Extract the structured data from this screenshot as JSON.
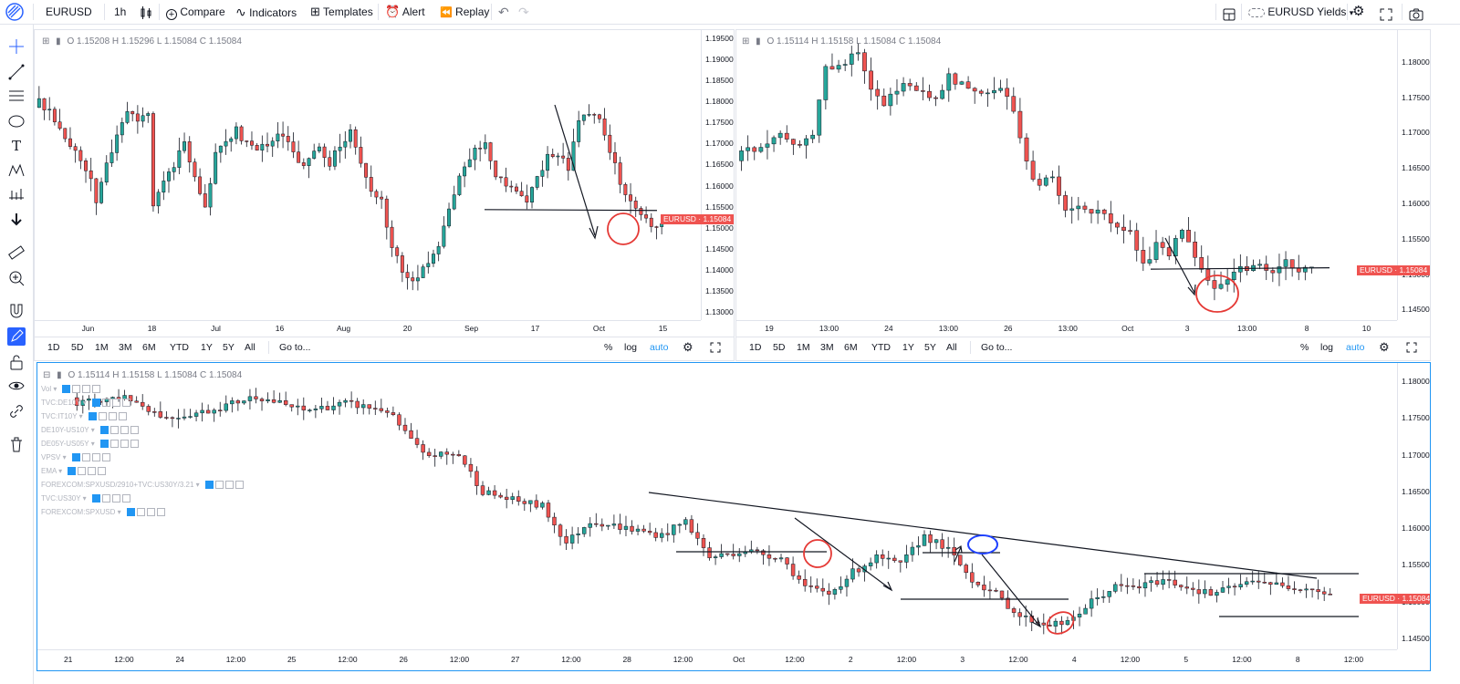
{
  "topbar": {
    "symbol": "EURUSD",
    "interval": "1h",
    "compare": "Compare",
    "indicators": "Indicators",
    "templates": "Templates",
    "alert": "Alert",
    "replay": "Replay",
    "layout_name": "EURUSD Yields"
  },
  "colors": {
    "up": "#26a69a",
    "down": "#ef5350",
    "accent": "#2196f3",
    "pricetag": "#ef5350",
    "annotation_red": "#e53935",
    "annotation_blue": "#1e40ff"
  },
  "leftbar_icons": [
    "crosshair-icon",
    "trendline-icon",
    "fib-icon",
    "shape-icon",
    "text-icon",
    "pattern-icon",
    "prediction-icon",
    "arrow-down-icon",
    "ruler-icon",
    "zoom-icon",
    "magnet-icon",
    "draw-mode-icon",
    "lock-icon",
    "eye-icon",
    "link-icon",
    "trash-icon"
  ],
  "range_buttons": [
    "1D",
    "5D",
    "1M",
    "3M",
    "6M",
    "YTD",
    "1Y",
    "5Y",
    "All"
  ],
  "goto": "Go to...",
  "scale_opts": {
    "percent": "%",
    "log": "log",
    "auto": "auto"
  },
  "pane1": {
    "ohlc": "O 1.15208   H 1.15296   L 1.15084   C 1.15084",
    "yticks": [
      "1.19500",
      "1.19000",
      "1.18500",
      "1.18000",
      "1.17500",
      "1.17000",
      "1.16500",
      "1.16000",
      "1.15500",
      "1.15000",
      "1.14500",
      "1.14000",
      "1.13500",
      "1.13000"
    ],
    "xticks": [
      "Jun",
      "18",
      "Jul",
      "16",
      "Aug",
      "20",
      "Sep",
      "17",
      "Oct",
      "15"
    ],
    "price_tag": "EURUSD · 1.15084"
  },
  "pane2": {
    "ohlc": "O 1.15114   H 1.15158   L 1.15084   C 1.15084",
    "yticks": [
      "1.18000",
      "1.17500",
      "1.17000",
      "1.16500",
      "1.16000",
      "1.15500",
      "1.15000",
      "1.14500"
    ],
    "xticks": [
      "19",
      "13:00",
      "24",
      "13:00",
      "26",
      "13:00",
      "Oct",
      "3",
      "13:00",
      "8",
      "10"
    ],
    "price_tag": "EURUSD · 1.15084"
  },
  "pane3": {
    "ohlc": "O 1.15114   H 1.15158   L 1.15084   C 1.15084",
    "indicators": [
      "Vol",
      "TVC:DE10Y",
      "TVC:IT10Y",
      "DE10Y-US10Y",
      "DE05Y-US05Y",
      "VPSV",
      "EMA",
      "FOREXCOM:SPXUSD/2910+TVC:US30Y/3.21",
      "TVC:US30Y",
      "FOREXCOM:SPXUSD"
    ],
    "yticks": [
      "1.18000",
      "1.17500",
      "1.17000",
      "1.16500",
      "1.16000",
      "1.15500",
      "1.15000",
      "1.14500"
    ],
    "xticks": [
      "21",
      "12:00",
      "24",
      "12:00",
      "25",
      "12:00",
      "26",
      "12:00",
      "27",
      "12:00",
      "28",
      "12:00",
      "Oct",
      "12:00",
      "2",
      "12:00",
      "3",
      "12:00",
      "4",
      "12:00",
      "5",
      "12:00",
      "8",
      "12:00"
    ],
    "price_tag": "EURUSD · 1.15084"
  },
  "chart_data": [
    {
      "type": "candlestick",
      "title": "EURUSD",
      "ylim": [
        1.128,
        1.197
      ],
      "close_path": [
        [
          0,
          1.18
        ],
        [
          2,
          1.178
        ],
        [
          4,
          1.173
        ],
        [
          6,
          1.17
        ],
        [
          8,
          1.165
        ],
        [
          10,
          1.162
        ],
        [
          11,
          1.155
        ],
        [
          13,
          1.165
        ],
        [
          15,
          1.172
        ],
        [
          17,
          1.178
        ],
        [
          19,
          1.176
        ],
        [
          21,
          1.178
        ],
        [
          22,
          1.156
        ],
        [
          24,
          1.162
        ],
        [
          26,
          1.165
        ],
        [
          28,
          1.17
        ],
        [
          30,
          1.162
        ],
        [
          32,
          1.155
        ],
        [
          34,
          1.168
        ],
        [
          36,
          1.17
        ],
        [
          38,
          1.173
        ],
        [
          40,
          1.17
        ],
        [
          42,
          1.168
        ],
        [
          44,
          1.17
        ],
        [
          46,
          1.172
        ],
        [
          48,
          1.171
        ],
        [
          50,
          1.165
        ],
        [
          52,
          1.166
        ],
        [
          54,
          1.17
        ],
        [
          56,
          1.165
        ],
        [
          58,
          1.17
        ],
        [
          60,
          1.173
        ],
        [
          62,
          1.165
        ],
        [
          64,
          1.158
        ],
        [
          66,
          1.156
        ],
        [
          68,
          1.145
        ],
        [
          70,
          1.14
        ],
        [
          72,
          1.138
        ],
        [
          74,
          1.14
        ],
        [
          76,
          1.143
        ],
        [
          78,
          1.15
        ],
        [
          80,
          1.158
        ],
        [
          82,
          1.165
        ],
        [
          84,
          1.168
        ],
        [
          86,
          1.17
        ],
        [
          88,
          1.163
        ],
        [
          90,
          1.16
        ],
        [
          92,
          1.158
        ],
        [
          94,
          1.157
        ],
        [
          96,
          1.162
        ],
        [
          98,
          1.167
        ],
        [
          100,
          1.168
        ],
        [
          102,
          1.164
        ],
        [
          104,
          1.175
        ],
        [
          106,
          1.177
        ],
        [
          108,
          1.175
        ],
        [
          110,
          1.168
        ],
        [
          112,
          1.161
        ],
        [
          114,
          1.156
        ],
        [
          116,
          1.154
        ],
        [
          118,
          1.15
        ],
        [
          120,
          1.1508
        ]
      ],
      "n": 121
    },
    {
      "type": "candlestick",
      "title": "EURUSD",
      "ylim": [
        1.1435,
        1.1845
      ],
      "close_path": [
        [
          0,
          1.167
        ],
        [
          3,
          1.168
        ],
        [
          6,
          1.17
        ],
        [
          9,
          1.168
        ],
        [
          11,
          1.17
        ],
        [
          13,
          1.179
        ],
        [
          16,
          1.18
        ],
        [
          18,
          1.181
        ],
        [
          20,
          1.176
        ],
        [
          22,
          1.174
        ],
        [
          24,
          1.176
        ],
        [
          26,
          1.177
        ],
        [
          28,
          1.176
        ],
        [
          30,
          1.175
        ],
        [
          32,
          1.178
        ],
        [
          34,
          1.177
        ],
        [
          36,
          1.176
        ],
        [
          38,
          1.175
        ],
        [
          40,
          1.176
        ],
        [
          42,
          1.173
        ],
        [
          44,
          1.166
        ],
        [
          46,
          1.162
        ],
        [
          48,
          1.164
        ],
        [
          50,
          1.159
        ],
        [
          52,
          1.16
        ],
        [
          54,
          1.159
        ],
        [
          56,
          1.158
        ],
        [
          58,
          1.157
        ],
        [
          60,
          1.156
        ],
        [
          62,
          1.151
        ],
        [
          64,
          1.154
        ],
        [
          66,
          1.153
        ],
        [
          68,
          1.156
        ],
        [
          70,
          1.152
        ],
        [
          72,
          1.149
        ],
        [
          74,
          1.148
        ],
        [
          76,
          1.15
        ],
        [
          78,
          1.151
        ],
        [
          80,
          1.151
        ],
        [
          82,
          1.1505
        ],
        [
          84,
          1.152
        ],
        [
          86,
          1.15
        ],
        [
          88,
          1.1508
        ]
      ],
      "n": 89
    },
    {
      "type": "candlestick",
      "title": "EURUSD",
      "ylim": [
        1.1435,
        1.1825
      ],
      "close_path": [
        [
          0,
          1.177
        ],
        [
          8,
          1.178
        ],
        [
          15,
          1.175
        ],
        [
          22,
          1.176
        ],
        [
          30,
          1.178
        ],
        [
          38,
          1.176
        ],
        [
          45,
          1.177
        ],
        [
          52,
          1.176
        ],
        [
          58,
          1.17
        ],
        [
          64,
          1.17
        ],
        [
          68,
          1.165
        ],
        [
          72,
          1.164
        ],
        [
          78,
          1.163
        ],
        [
          82,
          1.158
        ],
        [
          86,
          1.161
        ],
        [
          92,
          1.16
        ],
        [
          98,
          1.159
        ],
        [
          102,
          1.161
        ],
        [
          106,
          1.156
        ],
        [
          112,
          1.157
        ],
        [
          118,
          1.156
        ],
        [
          122,
          1.152
        ],
        [
          126,
          1.151
        ],
        [
          130,
          1.154
        ],
        [
          134,
          1.156
        ],
        [
          138,
          1.155
        ],
        [
          142,
          1.159
        ],
        [
          146,
          1.157
        ],
        [
          150,
          1.153
        ],
        [
          154,
          1.151
        ],
        [
          158,
          1.148
        ],
        [
          162,
          1.147
        ],
        [
          166,
          1.147
        ],
        [
          170,
          1.15
        ],
        [
          174,
          1.152
        ],
        [
          178,
          1.152
        ],
        [
          182,
          1.153
        ],
        [
          186,
          1.152
        ],
        [
          190,
          1.151
        ],
        [
          194,
          1.152
        ],
        [
          198,
          1.153
        ],
        [
          202,
          1.152
        ],
        [
          206,
          1.152
        ],
        [
          210,
          1.151
        ]
      ],
      "n": 211
    }
  ]
}
